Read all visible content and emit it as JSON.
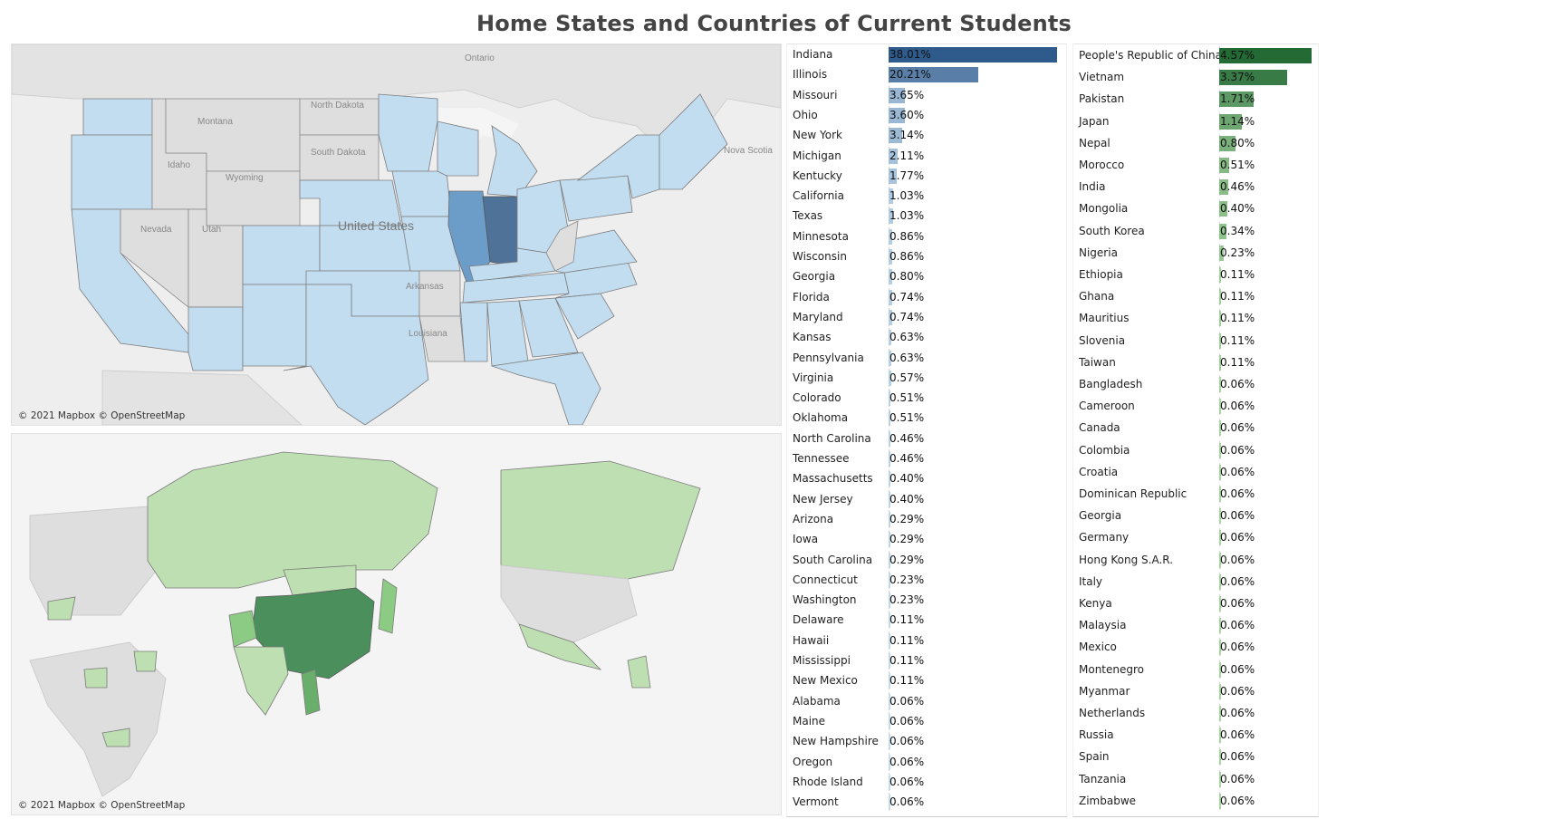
{
  "title": "Home States and Countries of Current Students",
  "maps": {
    "us_attribution": "© 2021 Mapbox © OpenStreetMap",
    "world_attribution": "© 2021 Mapbox © OpenStreetMap",
    "us_place_labels": [
      "Ontario",
      "North Dakota",
      "Montana",
      "South Dakota",
      "Idaho",
      "Wyoming",
      "Nova Scotia",
      "United States",
      "Nevada",
      "Utah",
      "Arkansas",
      "Louisiana"
    ],
    "colors": {
      "land": "#dedede",
      "water": "#f4f4f4",
      "us_light": "#c2dcf0",
      "us_mid": "#6c9dc8",
      "us_dark": "#4f7299",
      "world_light": "#bddfb1",
      "world_mid": "#8ccb84",
      "world_dark": "#4a8f5c"
    }
  },
  "chart_data": [
    {
      "type": "bar",
      "orientation": "horizontal",
      "title": "",
      "categories": [
        "Indiana",
        "Illinois",
        "Missouri",
        "Ohio",
        "New York",
        "Michigan",
        "Kentucky",
        "California",
        "Texas",
        "Minnesota",
        "Wisconsin",
        "Georgia",
        "Florida",
        "Maryland",
        "Kansas",
        "Pennsylvania",
        "Virginia",
        "Colorado",
        "Oklahoma",
        "North Carolina",
        "Tennessee",
        "Massachusetts",
        "New Jersey",
        "Arizona",
        "Iowa",
        "South Carolina",
        "Connecticut",
        "Washington",
        "Delaware",
        "Hawaii",
        "Mississippi",
        "New Mexico",
        "Alabama",
        "Maine",
        "New Hampshire",
        "Oregon",
        "Rhode Island",
        "Vermont"
      ],
      "values": [
        38.01,
        20.21,
        3.65,
        3.6,
        3.14,
        2.11,
        1.77,
        1.03,
        1.03,
        0.86,
        0.86,
        0.8,
        0.74,
        0.74,
        0.63,
        0.63,
        0.57,
        0.51,
        0.51,
        0.46,
        0.46,
        0.4,
        0.4,
        0.29,
        0.29,
        0.29,
        0.23,
        0.23,
        0.11,
        0.11,
        0.11,
        0.11,
        0.06,
        0.06,
        0.06,
        0.06,
        0.06,
        0.06
      ],
      "labels": [
        "38.01%",
        "20.21%",
        "3.65%",
        "3.60%",
        "3.14%",
        "2.11%",
        "1.77%",
        "1.03%",
        "1.03%",
        "0.86%",
        "0.86%",
        "0.80%",
        "0.74%",
        "0.74%",
        "0.63%",
        "0.63%",
        "0.57%",
        "0.51%",
        "0.51%",
        "0.46%",
        "0.46%",
        "0.40%",
        "0.40%",
        "0.29%",
        "0.29%",
        "0.29%",
        "0.23%",
        "0.23%",
        "0.11%",
        "0.11%",
        "0.11%",
        "0.11%",
        "0.06%",
        "0.06%",
        "0.06%",
        "0.06%",
        "0.06%",
        "0.06%"
      ],
      "xlim": [
        0,
        38.01
      ],
      "color_low": "#c9e1f3",
      "color_high": "#2f5b8c"
    },
    {
      "type": "bar",
      "orientation": "horizontal",
      "title": "",
      "categories": [
        "People's Republic of China",
        "Vietnam",
        "Pakistan",
        "Japan",
        "Nepal",
        "Morocco",
        "India",
        "Mongolia",
        "South Korea",
        "Nigeria",
        "Ethiopia",
        "Ghana",
        "Mauritius",
        "Slovenia",
        "Taiwan",
        "Bangladesh",
        "Cameroon",
        "Canada",
        "Colombia",
        "Croatia",
        "Dominican Republic",
        "Georgia",
        "Germany",
        "Hong Kong S.A.R.",
        "Italy",
        "Kenya",
        "Malaysia",
        "Mexico",
        "Montenegro",
        "Myanmar",
        "Netherlands",
        "Russia",
        "Spain",
        "Tanzania",
        "Zimbabwe"
      ],
      "values": [
        4.57,
        3.37,
        1.71,
        1.14,
        0.8,
        0.51,
        0.46,
        0.4,
        0.34,
        0.23,
        0.11,
        0.11,
        0.11,
        0.11,
        0.11,
        0.06,
        0.06,
        0.06,
        0.06,
        0.06,
        0.06,
        0.06,
        0.06,
        0.06,
        0.06,
        0.06,
        0.06,
        0.06,
        0.06,
        0.06,
        0.06,
        0.06,
        0.06,
        0.06,
        0.06
      ],
      "labels": [
        "4.57%",
        "3.37%",
        "1.71%",
        "1.14%",
        "0.80%",
        "0.51%",
        "0.46%",
        "0.40%",
        "0.34%",
        "0.23%",
        "0.11%",
        "0.11%",
        "0.11%",
        "0.11%",
        "0.11%",
        "0.06%",
        "0.06%",
        "0.06%",
        "0.06%",
        "0.06%",
        "0.06%",
        "0.06%",
        "0.06%",
        "0.06%",
        "0.06%",
        "0.06%",
        "0.06%",
        "0.06%",
        "0.06%",
        "0.06%",
        "0.06%",
        "0.06%",
        "0.06%",
        "0.06%",
        "0.06%"
      ],
      "xlim": [
        0,
        4.57
      ],
      "color_low": "#b8e2ad",
      "color_high": "#236a35"
    }
  ]
}
